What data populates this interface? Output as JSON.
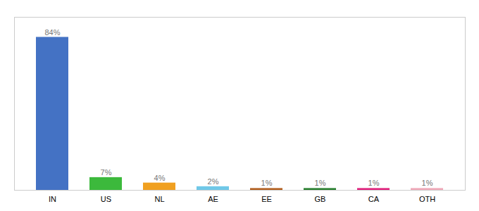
{
  "chart_data": {
    "type": "bar",
    "categories": [
      "IN",
      "US",
      "NL",
      "AE",
      "EE",
      "GB",
      "CA",
      "OTH"
    ],
    "values": [
      84,
      7,
      4,
      2,
      1,
      1,
      1,
      1
    ],
    "value_labels": [
      "84%",
      "7%",
      "4%",
      "2%",
      "1%",
      "1%",
      "1%",
      "1%"
    ],
    "colors": [
      "#4472c4",
      "#3cb93c",
      "#f0a020",
      "#70c8e8",
      "#b36020",
      "#2a8030",
      "#e0207c",
      "#f0a8b8"
    ],
    "ylim": [
      0,
      95
    ],
    "data_labels": true,
    "tick_labels": "x",
    "grid": false
  }
}
